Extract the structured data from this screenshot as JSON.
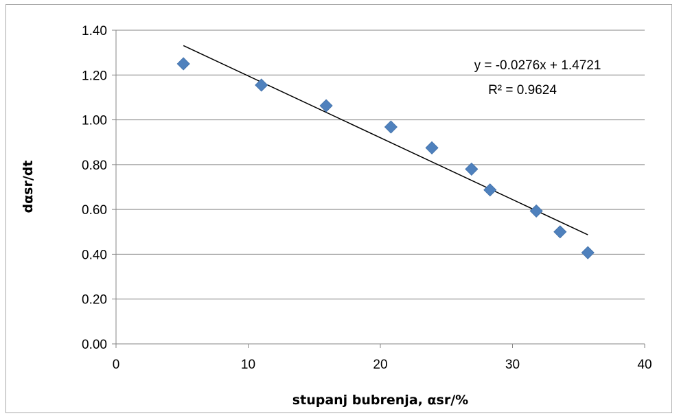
{
  "chart_data": {
    "type": "scatter",
    "xlabel": "stupanj bubrenja, αsr/%",
    "ylabel": "dαsr/dt",
    "xlim": [
      0,
      40
    ],
    "ylim": [
      0,
      1.4
    ],
    "x_ticks": [
      "0",
      "10",
      "20",
      "30",
      "40"
    ],
    "y_ticks": [
      "0.00",
      "0.20",
      "0.40",
      "0.60",
      "0.80",
      "1.00",
      "1.20",
      "1.40"
    ],
    "grid": true,
    "marker_color": "#4f81bd",
    "series": [
      {
        "points": [
          {
            "x": 5.1,
            "y": 1.25
          },
          {
            "x": 11.0,
            "y": 1.155
          },
          {
            "x": 15.9,
            "y": 1.063
          },
          {
            "x": 20.8,
            "y": 0.968
          },
          {
            "x": 23.9,
            "y": 0.875
          },
          {
            "x": 26.9,
            "y": 0.78
          },
          {
            "x": 28.3,
            "y": 0.687
          },
          {
            "x": 31.8,
            "y": 0.593
          },
          {
            "x": 33.6,
            "y": 0.5
          },
          {
            "x": 35.7,
            "y": 0.407
          }
        ]
      }
    ],
    "trendline": {
      "slope": -0.0276,
      "intercept": 1.4721,
      "x_range": [
        5.1,
        35.7
      ],
      "color": "#000000",
      "equation_label": "y = -0.0276x + 1.4721",
      "r2_label": "R² = 0.9624"
    }
  }
}
